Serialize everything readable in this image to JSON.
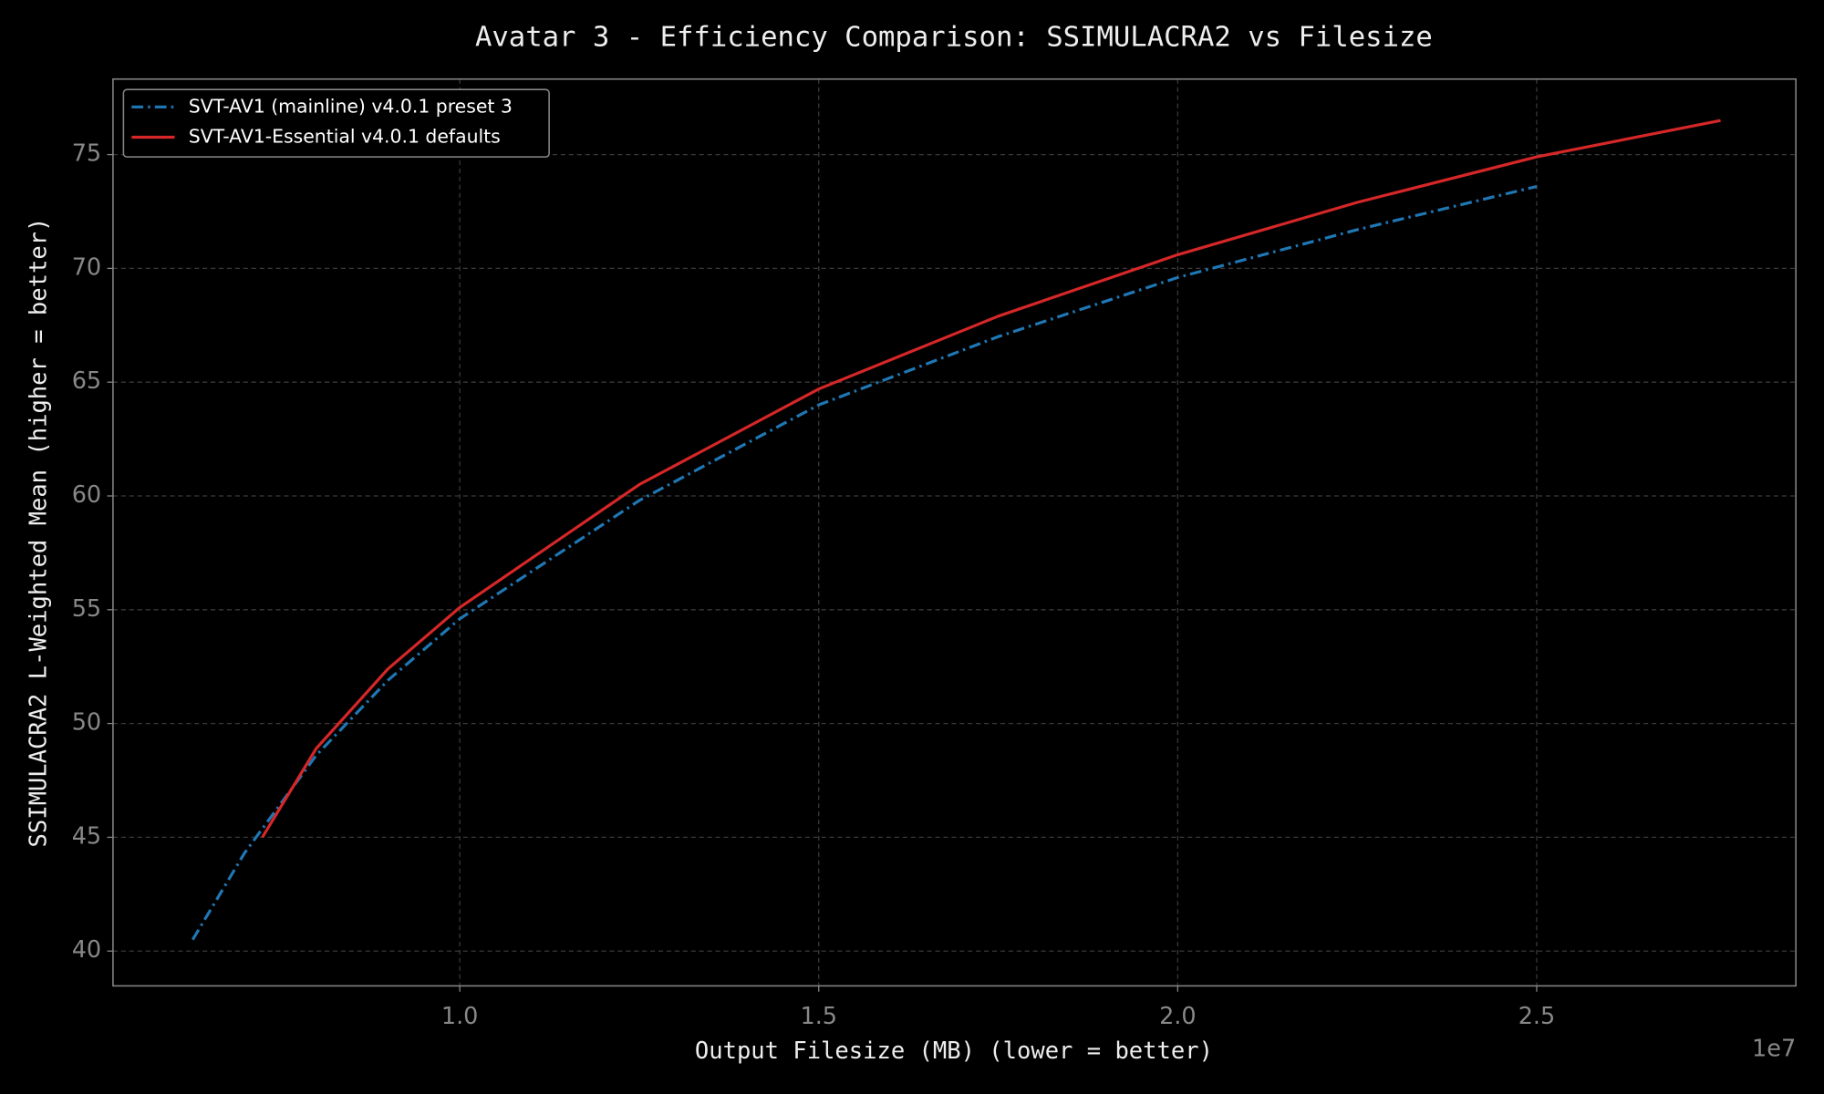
{
  "chart_data": {
    "type": "line",
    "title": "Avatar 3 - Efficiency Comparison: SSIMULACRA2 vs Filesize",
    "x_label": "Output Filesize (MB) (lower = better)",
    "y_label": "SSIMULACRA2 L-Weighted Mean (higher = better)",
    "x_offset_label": "1e7",
    "xlim": [
      5170000,
      28610000
    ],
    "ylim": [
      38.47,
      78.32
    ],
    "xticks": [
      {
        "value": 10000000,
        "label": "1.0"
      },
      {
        "value": 15000000,
        "label": "1.5"
      },
      {
        "value": 20000000,
        "label": "2.0"
      },
      {
        "value": 25000000,
        "label": "2.5"
      }
    ],
    "yticks": [
      40,
      45,
      50,
      55,
      60,
      65,
      70,
      75
    ],
    "grid": true,
    "legend": "upper left",
    "series": [
      {
        "name": "SVT-AV1 (mainline) v4.0.1 preset 3",
        "color": "#1f77b4",
        "linestyle": "dashdot",
        "x": [
          6280000,
          7000000,
          8000000,
          9000000,
          10000000,
          12500000,
          15000000,
          17500000,
          20000000,
          22500000,
          25000000
        ],
        "values": [
          40.5,
          44.3,
          48.6,
          51.9,
          54.6,
          59.8,
          64.0,
          67.0,
          69.6,
          71.7,
          73.6
        ]
      },
      {
        "name": "SVT-AV1-Essential v4.0.1 defaults",
        "color": "#d62728",
        "linestyle": "solid",
        "x": [
          7250000,
          8000000,
          9000000,
          10000000,
          12500000,
          15000000,
          17500000,
          20000000,
          22500000,
          25000000,
          27560000
        ],
        "values": [
          45.0,
          48.9,
          52.4,
          55.1,
          60.5,
          64.7,
          67.9,
          70.6,
          72.9,
          74.9,
          76.5
        ]
      }
    ]
  }
}
